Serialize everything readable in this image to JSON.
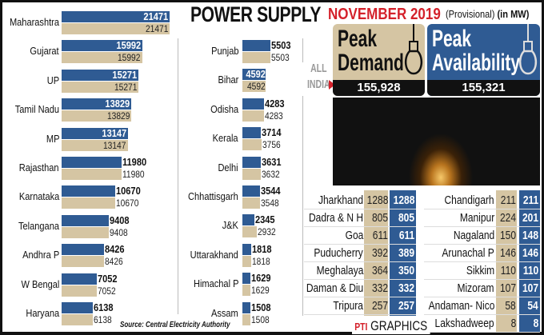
{
  "chart_data": {
    "type": "bar",
    "orientation": "horizontal",
    "title": "POWER SUPPLY",
    "subtitle": "NOVEMBER 2019",
    "note": "(Provisional)",
    "unit": "(in MW)",
    "source": "Source: Central Electricity Authority",
    "colors": {
      "availability": "#2f5b93",
      "demand": "#d5c5a3"
    },
    "series_order": [
      "availability",
      "demand"
    ],
    "large_states": [
      {
        "state": "Maharashtra",
        "availability": 21471,
        "demand": 21471
      },
      {
        "state": "Gujarat",
        "availability": 15992,
        "demand": 15992
      },
      {
        "state": "UP",
        "availability": 15271,
        "demand": 15271
      },
      {
        "state": "Tamil Nadu",
        "availability": 13829,
        "demand": 13829
      },
      {
        "state": "MP",
        "availability": 13147,
        "demand": 13147
      },
      {
        "state": "Rajasthan",
        "availability": 11980,
        "demand": 11980
      },
      {
        "state": "Karnataka",
        "availability": 10670,
        "demand": 10670
      },
      {
        "state": "Telangana",
        "availability": 9408,
        "demand": 9408
      },
      {
        "state": "Andhra P",
        "availability": 8426,
        "demand": 8426
      },
      {
        "state": "W Bengal",
        "availability": 7052,
        "demand": 7052
      },
      {
        "state": "Haryana",
        "availability": 6138,
        "demand": 6138
      }
    ],
    "mid_states": [
      {
        "state": "Punjab",
        "availability": 5503,
        "demand": 5503
      },
      {
        "state": "Bihar",
        "availability": 4592,
        "demand": 4592
      },
      {
        "state": "Odisha",
        "availability": 4283,
        "demand": 4283
      },
      {
        "state": "Kerala",
        "availability": 3714,
        "demand": 3756
      },
      {
        "state": "Delhi",
        "availability": 3631,
        "demand": 3632
      },
      {
        "state": "Chhattisgarh",
        "availability": 3544,
        "demand": 3548
      },
      {
        "state": "J&K",
        "availability": 2345,
        "demand": 2932
      },
      {
        "state": "Uttarakhand",
        "availability": 1818,
        "demand": 1818
      },
      {
        "state": "Himachal P",
        "availability": 1629,
        "demand": 1629
      },
      {
        "state": "Assam",
        "availability": 1508,
        "demand": 1508
      }
    ],
    "all_india": {
      "label_1": "ALL",
      "label_2": "INDIA",
      "peak_demand_label_1": "Peak",
      "peak_demand_label_2": "Demand",
      "peak_demand": "155,928",
      "peak_availability_label_1": "Peak",
      "peak_availability_label_2": "Availability",
      "peak_availability": "155,321"
    },
    "table_left": [
      {
        "state": "Jharkhand",
        "demand": 1288,
        "availability": 1288
      },
      {
        "state": "Dadra & N H",
        "demand": 805,
        "availability": 805
      },
      {
        "state": "Goa",
        "demand": 611,
        "availability": 611
      },
      {
        "state": "Puducherry",
        "demand": 392,
        "availability": 389
      },
      {
        "state": "Meghalaya",
        "demand": 364,
        "availability": 350
      },
      {
        "state": "Daman & Diu",
        "demand": 332,
        "availability": 332
      },
      {
        "state": "Tripura",
        "demand": 257,
        "availability": 257
      }
    ],
    "table_right": [
      {
        "state": "Chandigarh",
        "demand": 211,
        "availability": 211
      },
      {
        "state": "Manipur",
        "demand": 224,
        "availability": 201
      },
      {
        "state": "Nagaland",
        "demand": 150,
        "availability": 148
      },
      {
        "state": "Arunachal P",
        "demand": 146,
        "availability": 146
      },
      {
        "state": "Sikkim",
        "demand": 110,
        "availability": 110
      },
      {
        "state": "Mizoram",
        "demand": 107,
        "availability": 107
      },
      {
        "state": "Andaman- Nico",
        "demand": 58,
        "availability": 54
      },
      {
        "state": "Lakshadweep",
        "demand": 8,
        "availability": 8
      }
    ]
  },
  "credit": {
    "logo": "PTI",
    "label": "GRAPHICS"
  }
}
